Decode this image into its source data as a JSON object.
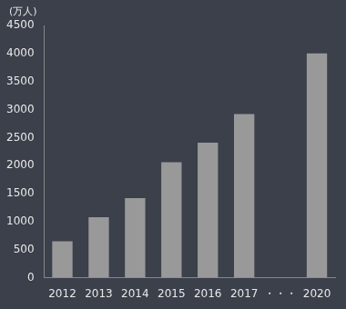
{
  "chart_data": {
    "type": "bar",
    "ylabel": "(万人)",
    "categories": [
      "2012",
      "2013",
      "2014",
      "2015",
      "2016",
      "2017",
      "・・・",
      "2020"
    ],
    "values": [
      650,
      1080,
      1420,
      2060,
      2410,
      2920,
      null,
      4000
    ],
    "color": "#999999",
    "ylim": [
      0,
      4500
    ],
    "yticks": [
      0,
      500,
      1000,
      1500,
      2000,
      2500,
      3000,
      3500,
      4000,
      4500
    ],
    "grid": false,
    "data_labels": false
  }
}
